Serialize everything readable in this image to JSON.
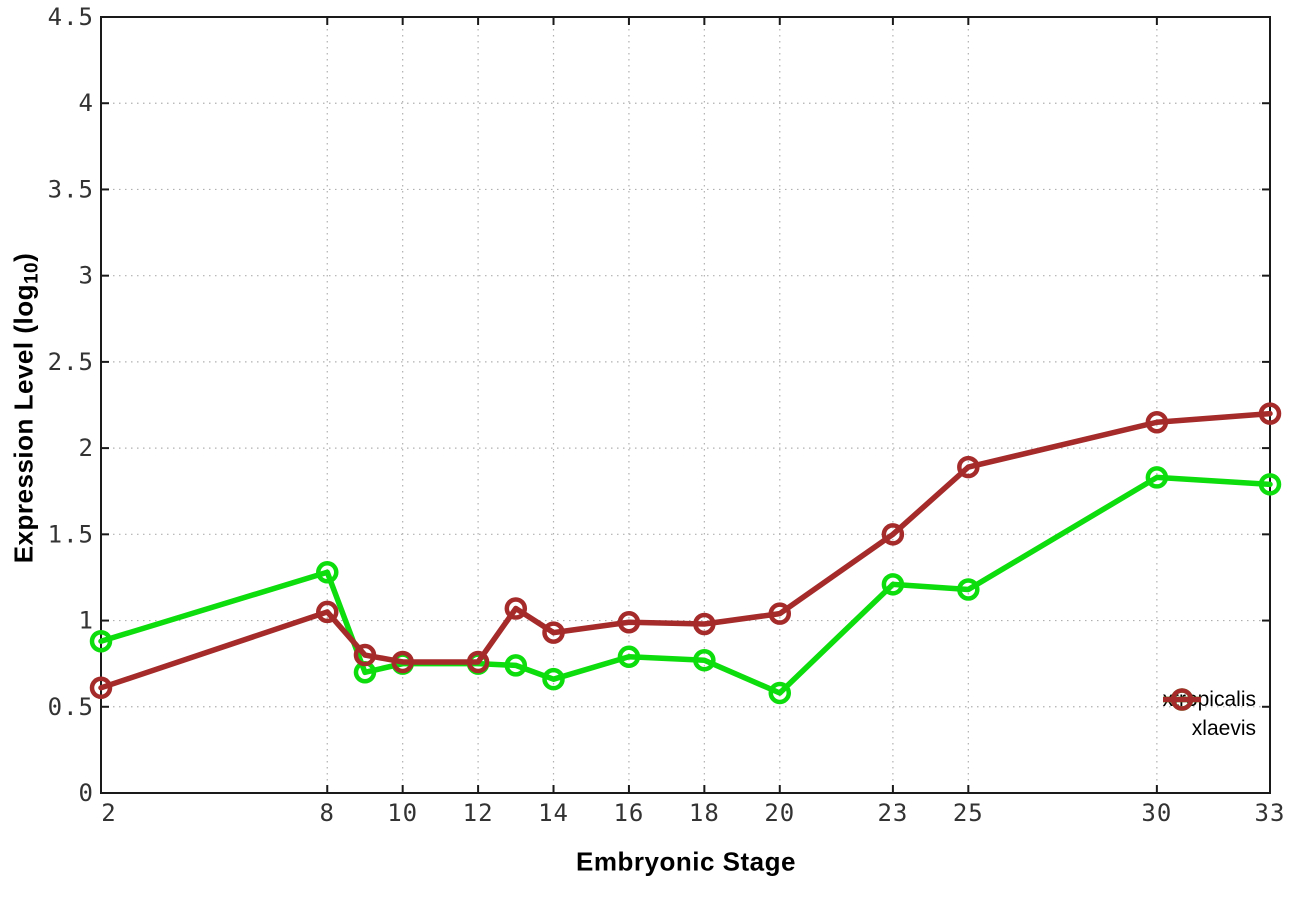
{
  "figure": {
    "background": "#ffffff",
    "xlabel": "Embryonic Stage",
    "ylabel_prefix": "Expression Level (log",
    "ylabel_subscript": "10",
    "ylabel_suffix": ")"
  },
  "chart_data": {
    "type": "line",
    "title": "",
    "xlabel": "Embryonic Stage",
    "ylabel": "Expression Level (log10)",
    "xlim": [
      2,
      33
    ],
    "ylim": [
      0,
      4.5
    ],
    "x_ticks": [
      2,
      8,
      10,
      12,
      14,
      16,
      18,
      20,
      23,
      25,
      30,
      33
    ],
    "y_ticks": [
      0,
      0.5,
      1,
      1.5,
      2,
      2.5,
      3,
      3.5,
      4,
      4.5
    ],
    "grid": true,
    "legend_position": "inside-bottom-right",
    "marker": "open-circle",
    "x": [
      2,
      8,
      9,
      10,
      12,
      13,
      14,
      16,
      18,
      20,
      23,
      25,
      30,
      33
    ],
    "series": [
      {
        "name": "xtropicalis",
        "color": "#0ddd0d",
        "values": [
          0.88,
          1.28,
          0.7,
          0.75,
          0.75,
          0.74,
          0.66,
          0.79,
          0.77,
          0.58,
          1.21,
          1.18,
          1.83,
          1.79
        ]
      },
      {
        "name": "xlaevis",
        "color": "#a52a2a",
        "values": [
          0.61,
          1.05,
          0.8,
          0.76,
          0.76,
          1.07,
          0.93,
          0.99,
          0.98,
          1.04,
          1.5,
          1.89,
          2.15,
          2.2
        ]
      }
    ]
  },
  "colors": {
    "axis": "#1a1a1a",
    "grid": "#b0b0b0",
    "tick_label": "#333333",
    "background": "#ffffff"
  }
}
